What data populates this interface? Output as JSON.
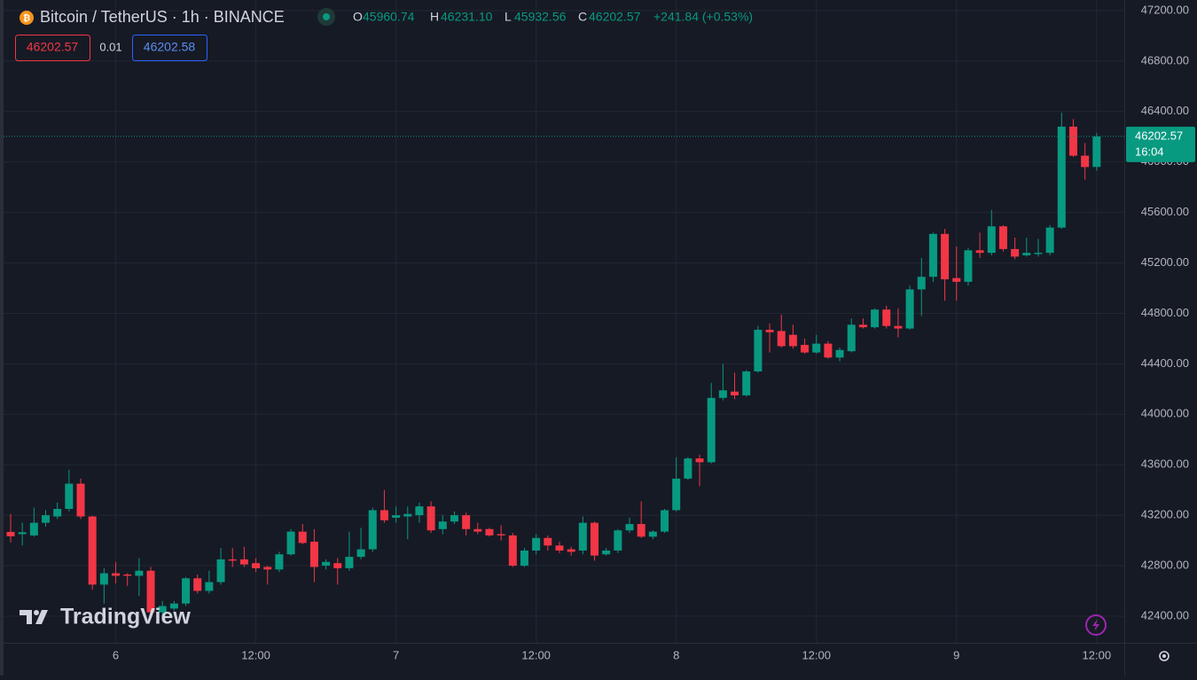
{
  "chart_data": {
    "type": "candlestick",
    "title": "Bitcoin / TetherUS · 1h · BINANCE",
    "legend": [
      {
        "key": "O",
        "value": "45960.74"
      },
      {
        "key": "H",
        "value": "46231.10"
      },
      {
        "key": "L",
        "value": "45932.56"
      },
      {
        "key": "C",
        "value": "46202.57"
      }
    ],
    "change": "+241.84 (+0.53%)",
    "bid": "46202.57",
    "spread": "0.01",
    "ask": "46202.58",
    "countdown": "16:04",
    "watermark": "TradingView",
    "up_color": "#089981",
    "down_color": "#f23645",
    "grid": true,
    "categories": [
      null,
      null,
      null,
      null,
      null,
      null,
      null,
      null,
      null,
      "6",
      null,
      null,
      null,
      null,
      null,
      null,
      null,
      null,
      null,
      null,
      null,
      "12:00",
      null,
      null,
      null,
      null,
      null,
      null,
      null,
      null,
      null,
      null,
      null,
      "7",
      null,
      null,
      null,
      null,
      null,
      null,
      null,
      null,
      null,
      null,
      null,
      "12:00",
      null,
      null,
      null,
      null,
      null,
      null,
      null,
      null,
      null,
      null,
      null,
      "8",
      null,
      null,
      null,
      null,
      null,
      null,
      null,
      null,
      null,
      null,
      null,
      "12:00",
      null,
      null,
      null,
      null,
      null,
      null,
      null,
      null,
      null,
      null,
      null,
      "9",
      null,
      null,
      null,
      null,
      null,
      null,
      null,
      null,
      null,
      null,
      null,
      "12:00"
    ],
    "open": [
      43068,
      43050,
      43040,
      43140,
      43190,
      43250,
      43450,
      43190,
      42650,
      42740,
      42730,
      42720,
      42760,
      42430,
      42460,
      42500,
      42700,
      42600,
      42670,
      42850,
      42850,
      42820,
      42790,
      42770,
      42890,
      43070,
      42990,
      42800,
      42820,
      42780,
      42870,
      42930,
      43240,
      43180,
      43190,
      43200,
      43270,
      43090,
      43150,
      43200,
      43090,
      43090,
      43050,
      43040,
      42800,
      42920,
      43020,
      42960,
      42930,
      42920,
      43140,
      42890,
      42920,
      43080,
      43130,
      43030,
      43070,
      43240,
      43490,
      43650,
      43620,
      44130,
      44180,
      44150,
      44340,
      44670,
      44660,
      44630,
      44550,
      44490,
      44560,
      44450,
      44500,
      44710,
      44690,
      44830,
      44700,
      44680,
      44990,
      45090,
      45430,
      45080,
      45050,
      45300,
      45280,
      45490,
      45310,
      45260,
      45270,
      45280,
      45480,
      46280,
      46050,
      45960.74
    ],
    "high": [
      43210,
      43140,
      43260,
      43240,
      43300,
      43560,
      43490,
      43195,
      42780,
      42830,
      42740,
      42860,
      42790,
      42520,
      42520,
      42710,
      42730,
      42760,
      42940,
      42940,
      42950,
      42860,
      42800,
      42910,
      43090,
      43130,
      43090,
      42850,
      42860,
      43070,
      43100,
      43260,
      43400,
      43270,
      43270,
      43300,
      43310,
      43200,
      43230,
      43220,
      43140,
      43100,
      43120,
      43060,
      42940,
      43050,
      43040,
      42990,
      42950,
      43190,
      43150,
      42940,
      43090,
      43180,
      43310,
      43080,
      43250,
      43660,
      43660,
      43680,
      44250,
      44400,
      44330,
      44350,
      44700,
      44720,
      44790,
      44710,
      44600,
      44630,
      44580,
      44530,
      44760,
      44760,
      44840,
      44860,
      44840,
      45020,
      45240,
      45440,
      45470,
      45330,
      45320,
      45440,
      45620,
      45500,
      45400,
      45400,
      45390,
      45500,
      46390,
      46340,
      46150,
      46231.1
    ],
    "low": [
      42984,
      42960,
      43030,
      43110,
      43170,
      43230,
      43170,
      42610,
      42500,
      42660,
      42640,
      42560,
      42430,
      42400,
      42440,
      42480,
      42580,
      42580,
      42650,
      42790,
      42790,
      42750,
      42650,
      42750,
      42880,
      42970,
      42670,
      42770,
      42650,
      42760,
      42850,
      42910,
      43140,
      43140,
      43010,
      43140,
      43060,
      43050,
      43130,
      43040,
      43050,
      43030,
      43000,
      42790,
      42790,
      42890,
      42920,
      42900,
      42880,
      42890,
      42840,
      42880,
      42900,
      43060,
      43020,
      43010,
      43060,
      43230,
      43480,
      43430,
      43610,
      44110,
      44120,
      44140,
      44330,
      44490,
      44530,
      44520,
      44480,
      44480,
      44440,
      44420,
      44490,
      44680,
      44680,
      44680,
      44610,
      44670,
      44780,
      45050,
      44900,
      44900,
      45020,
      45240,
      45260,
      45290,
      45230,
      45250,
      45250,
      45260,
      45470,
      46040,
      45860,
      45932.56
    ],
    "close": [
      43033,
      43065,
      43140,
      43200,
      43250,
      43450,
      43190,
      42650,
      42740,
      42720,
      42720,
      42760,
      42430,
      42480,
      42500,
      42700,
      42600,
      42670,
      42850,
      42840,
      42810,
      42780,
      42770,
      42890,
      43070,
      42980,
      42790,
      42830,
      42780,
      42870,
      42930,
      43240,
      43160,
      43200,
      43210,
      43270,
      43080,
      43150,
      43200,
      43090,
      43070,
      43040,
      43040,
      42800,
      42920,
      43020,
      42960,
      42920,
      42910,
      43140,
      42880,
      42920,
      43080,
      43130,
      43030,
      43070,
      43240,
      43490,
      43650,
      43620,
      44130,
      44190,
      44150,
      44340,
      44670,
      44650,
      44540,
      44540,
      44490,
      44560,
      44450,
      44510,
      44710,
      44690,
      44830,
      44700,
      44680,
      44990,
      45090,
      45430,
      45070,
      45050,
      45300,
      45280,
      45490,
      45310,
      45250,
      45280,
      45280,
      45480,
      46280,
      46050,
      45960,
      46202.57
    ],
    "ylim": [
      42189,
      47284
    ],
    "yticks": [
      {
        "value": 42400,
        "label": "42400.00"
      },
      {
        "value": 42800,
        "label": "42800.00"
      },
      {
        "value": 43200,
        "label": "43200.00"
      },
      {
        "value": 43600,
        "label": "43600.00"
      },
      {
        "value": 44000,
        "label": "44000.00"
      },
      {
        "value": 44400,
        "label": "44400.00"
      },
      {
        "value": 44800,
        "label": "44800.00"
      },
      {
        "value": 45200,
        "label": "45200.00"
      },
      {
        "value": 45600,
        "label": "45600.00"
      },
      {
        "value": 46000,
        "label": "46000.00"
      },
      {
        "value": 46400,
        "label": "46400.00"
      },
      {
        "value": 46800,
        "label": "46800.00"
      },
      {
        "value": 47200,
        "label": "47200.00"
      }
    ]
  }
}
